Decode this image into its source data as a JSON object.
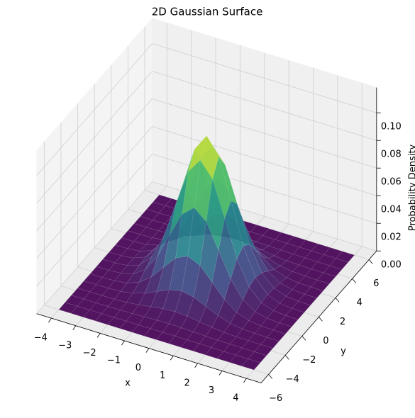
{
  "chart_data": {
    "type": "surface",
    "title": "2D Gaussian Surface",
    "xlabel": "x",
    "ylabel": "y",
    "zlabel": "Probability Density",
    "colormap": "viridis",
    "x": [
      -4,
      -3.5,
      -3,
      -2.5,
      -2,
      -1.5,
      -1,
      -0.5,
      0,
      0.5,
      1,
      1.5,
      2,
      2.5,
      3,
      3.5,
      4
    ],
    "y": [
      -6,
      -5.25,
      -4.5,
      -3.75,
      -3,
      -2.25,
      -1.5,
      -0.75,
      0,
      0.75,
      1.5,
      2.25,
      3,
      3.75,
      4.5,
      5.25,
      6
    ],
    "z": [
      [
        0,
        0,
        0,
        0,
        0,
        0,
        0,
        0,
        0,
        0,
        0,
        0,
        0,
        0,
        0,
        0,
        0
      ],
      [
        0,
        0,
        0,
        0,
        0,
        0.0001,
        0.0001,
        0.0002,
        0.0002,
        0.0002,
        0.0001,
        0.0001,
        0,
        0,
        0,
        0,
        0
      ],
      [
        0,
        0,
        0,
        0.0001,
        0.0002,
        0.0004,
        0.0007,
        0.0011,
        0.0012,
        0.0011,
        0.0007,
        0.0004,
        0.0002,
        0.0001,
        0,
        0,
        0
      ],
      [
        0,
        0,
        0.0001,
        0.0002,
        0.0006,
        0.0015,
        0.0028,
        0.0041,
        0.0047,
        0.0041,
        0.0028,
        0.0015,
        0.0006,
        0.0002,
        0.0001,
        0,
        0
      ],
      [
        0,
        0,
        0.0002,
        0.0006,
        0.0019,
        0.0047,
        0.0087,
        0.0127,
        0.0144,
        0.0127,
        0.0087,
        0.0047,
        0.0019,
        0.0006,
        0.0002,
        0,
        0
      ],
      [
        0,
        0.0001,
        0.0004,
        0.0015,
        0.0047,
        0.0112,
        0.0209,
        0.0304,
        0.0345,
        0.0304,
        0.0209,
        0.0112,
        0.0047,
        0.0015,
        0.0004,
        0.0001,
        0
      ],
      [
        0,
        0.0001,
        0.0007,
        0.0028,
        0.0087,
        0.0209,
        0.0391,
        0.0568,
        0.0644,
        0.0568,
        0.0391,
        0.0209,
        0.0087,
        0.0028,
        0.0007,
        0.0001,
        0
      ],
      [
        0,
        0.0002,
        0.001,
        0.0041,
        0.0127,
        0.0304,
        0.0568,
        0.0826,
        0.0936,
        0.0826,
        0.0568,
        0.0304,
        0.0127,
        0.0041,
        0.001,
        0.0002,
        0
      ],
      [
        0,
        0.0002,
        0.0012,
        0.0047,
        0.0144,
        0.0345,
        0.0644,
        0.0936,
        0.1061,
        0.0936,
        0.0644,
        0.0345,
        0.0144,
        0.0047,
        0.0012,
        0.0002,
        0
      ],
      [
        0,
        0.0002,
        0.001,
        0.0041,
        0.0127,
        0.0304,
        0.0568,
        0.0826,
        0.0936,
        0.0826,
        0.0568,
        0.0304,
        0.0127,
        0.0041,
        0.001,
        0.0002,
        0
      ],
      [
        0,
        0.0001,
        0.0007,
        0.0028,
        0.0087,
        0.0209,
        0.0391,
        0.0568,
        0.0644,
        0.0568,
        0.0391,
        0.0209,
        0.0087,
        0.0028,
        0.0007,
        0.0001,
        0
      ],
      [
        0,
        0.0001,
        0.0004,
        0.0015,
        0.0047,
        0.0112,
        0.0209,
        0.0304,
        0.0345,
        0.0304,
        0.0209,
        0.0112,
        0.0047,
        0.0015,
        0.0004,
        0.0001,
        0
      ],
      [
        0,
        0,
        0.0002,
        0.0006,
        0.0019,
        0.0047,
        0.0087,
        0.0127,
        0.0144,
        0.0127,
        0.0087,
        0.0047,
        0.0019,
        0.0006,
        0.0002,
        0,
        0
      ],
      [
        0,
        0,
        0.0001,
        0.0002,
        0.0006,
        0.0015,
        0.0028,
        0.0041,
        0.0047,
        0.0041,
        0.0028,
        0.0015,
        0.0006,
        0.0002,
        0.0001,
        0,
        0
      ],
      [
        0,
        0,
        0,
        0.0001,
        0.0002,
        0.0004,
        0.0007,
        0.0011,
        0.0012,
        0.0011,
        0.0007,
        0.0004,
        0.0002,
        0.0001,
        0,
        0,
        0
      ],
      [
        0,
        0,
        0,
        0,
        0,
        0.0001,
        0.0001,
        0.0002,
        0.0002,
        0.0002,
        0.0001,
        0.0001,
        0,
        0,
        0,
        0,
        0
      ],
      [
        0,
        0,
        0,
        0,
        0,
        0,
        0,
        0,
        0,
        0,
        0,
        0,
        0,
        0,
        0,
        0,
        0
      ]
    ],
    "xlim": [
      -4,
      4
    ],
    "ylim": [
      -6,
      6
    ],
    "zlim": [
      0,
      0.11
    ],
    "xticks": [
      {
        "value": -4,
        "label": "−4"
      },
      {
        "value": -3,
        "label": "−3"
      },
      {
        "value": -2,
        "label": "−2"
      },
      {
        "value": -1,
        "label": "−1"
      },
      0,
      1,
      2,
      3,
      4
    ],
    "yticks": [
      {
        "value": -6,
        "label": "−6"
      },
      {
        "value": -4,
        "label": "−4"
      },
      {
        "value": -2,
        "label": "−2"
      },
      0,
      2,
      4,
      6
    ],
    "zticks": [
      {
        "value": 0,
        "label": "0.00"
      },
      {
        "value": 0.02,
        "label": "0.02"
      },
      {
        "value": 0.04,
        "label": "0.04"
      },
      {
        "value": 0.06,
        "label": "0.06"
      },
      {
        "value": 0.08,
        "label": "0.08"
      },
      {
        "value": 0.1,
        "label": "0.10"
      }
    ],
    "grid": true
  }
}
